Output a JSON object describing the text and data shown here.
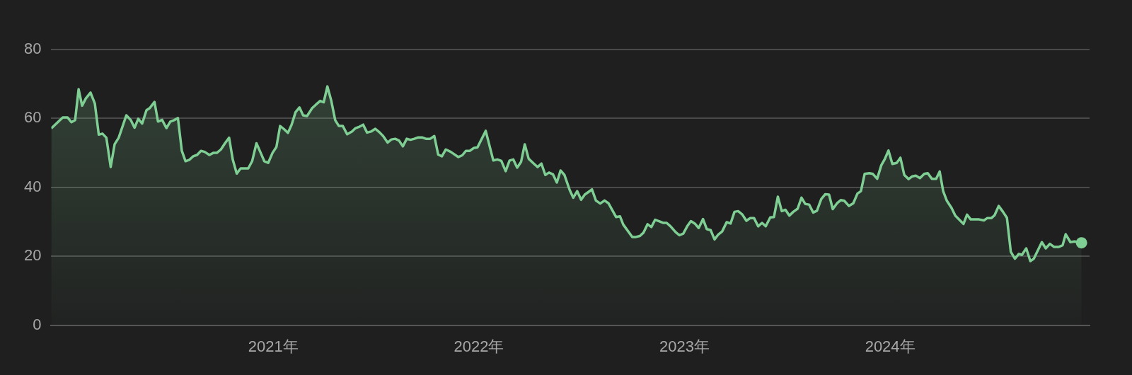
{
  "chart_data": {
    "type": "area",
    "grid": "y",
    "legend": false,
    "xlim": [
      2019.92,
      2024.97
    ],
    "xticks": [
      {
        "value": 2021,
        "label": "2021年"
      },
      {
        "value": 2022,
        "label": "2022年"
      },
      {
        "value": 2023,
        "label": "2023年"
      },
      {
        "value": 2024,
        "label": "2024年"
      }
    ],
    "ylim": [
      0,
      80
    ],
    "yticks": [
      0,
      20,
      40,
      60,
      80
    ],
    "series": [
      {
        "color": "#7fcf94",
        "x": [
          2019.92,
          2019.946,
          2019.976,
          2019.999,
          2020.018,
          2020.036,
          2020.053,
          2020.07,
          2020.088,
          2020.111,
          2020.132,
          2020.151,
          2020.169,
          2020.188,
          2020.209,
          2020.228,
          2020.248,
          2020.285,
          2020.306,
          2020.325,
          2020.343,
          2020.362,
          2020.383,
          2020.399,
          2020.422,
          2020.439,
          2020.459,
          2020.48,
          2020.499,
          2020.517,
          2020.536,
          2020.555,
          2020.573,
          2020.592,
          2020.61,
          2020.629,
          2020.648,
          2020.666,
          2020.689,
          2020.708,
          2020.725,
          2020.745,
          2020.766,
          2020.785,
          2020.803,
          2020.822,
          2020.841,
          2020.859,
          2020.878,
          2020.897,
          2020.918,
          2020.938,
          2020.956,
          2020.975,
          2020.996,
          2021.015,
          2021.033,
          2021.052,
          2021.071,
          2021.089,
          2021.108,
          2021.127,
          2021.145,
          2021.164,
          2021.189,
          2021.207,
          2021.228,
          2021.245,
          2021.263,
          2021.282,
          2021.301,
          2021.319,
          2021.338,
          2021.359,
          2021.382,
          2021.4,
          2021.419,
          2021.437,
          2021.456,
          2021.475,
          2021.496,
          2021.516,
          2021.534,
          2021.556,
          2021.574,
          2021.593,
          2021.611,
          2021.63,
          2021.649,
          2021.667,
          2021.686,
          2021.705,
          2021.723,
          2021.742,
          2021.763,
          2021.783,
          2021.802,
          2021.82,
          2021.839,
          2021.863,
          2021.9,
          2021.919,
          2021.937,
          2021.956,
          2021.974,
          2021.993,
          2022.033,
          2022.07,
          2022.09,
          2022.109,
          2022.13,
          2022.149,
          2022.167,
          2022.186,
          2022.205,
          2022.223,
          2022.242,
          2022.267,
          2022.285,
          2022.304,
          2022.323,
          2022.341,
          2022.36,
          2022.379,
          2022.397,
          2022.416,
          2022.441,
          2022.459,
          2022.478,
          2022.497,
          2022.515,
          2022.55,
          2022.569,
          2022.59,
          2022.611,
          2022.63,
          2022.667,
          2022.686,
          2022.702,
          2022.746,
          2022.764,
          2022.783,
          2022.801,
          2022.82,
          2022.839,
          2022.857,
          2022.876,
          2022.895,
          2022.913,
          2022.932,
          2022.957,
          2022.975,
          2022.994,
          2023.013,
          2023.031,
          2023.05,
          2023.069,
          2023.09,
          2023.108,
          2023.127,
          2023.146,
          2023.164,
          2023.183,
          2023.205,
          2023.224,
          2023.243,
          2023.261,
          2023.28,
          2023.301,
          2023.32,
          2023.338,
          2023.358,
          2023.377,
          2023.395,
          2023.417,
          2023.435,
          2023.454,
          2023.473,
          2023.491,
          2023.51,
          2023.529,
          2023.55,
          2023.569,
          2023.587,
          2023.606,
          2023.626,
          2023.644,
          2023.665,
          2023.684,
          2023.703,
          2023.721,
          2023.742,
          2023.76,
          2023.777,
          2023.8,
          2023.821,
          2023.841,
          2023.858,
          2023.876,
          2023.899,
          2023.916,
          2023.937,
          2023.957,
          2023.974,
          2023.992,
          2024.011,
          2024.032,
          2024.05,
          2024.069,
          2024.09,
          2024.108,
          2024.125,
          2024.145,
          2024.166,
          2024.183,
          2024.203,
          2024.224,
          2024.241,
          2024.258,
          2024.276,
          2024.299,
          2024.317,
          2024.357,
          2024.374,
          2024.392,
          2024.415,
          2024.433,
          2024.456,
          2024.473,
          2024.493,
          2024.508,
          2024.528,
          2024.549,
          2024.568,
          2024.587,
          2024.607,
          2024.626,
          2024.641,
          2024.662,
          2024.682,
          2024.699,
          2024.738,
          2024.757,
          2024.777,
          2024.798,
          2024.819,
          2024.839,
          2024.854,
          2024.877,
          2024.897,
          2024.931
        ],
        "values": [
          57.1,
          58.6,
          60.3,
          60.3,
          58.9,
          59.5,
          68.5,
          63.7,
          65.8,
          67.5,
          64.3,
          55.3,
          55.6,
          54.4,
          45.9,
          52.5,
          54.4,
          60.9,
          59.6,
          57.3,
          59.9,
          58.5,
          62.4,
          63.0,
          64.8,
          59.1,
          59.6,
          57.2,
          59.1,
          59.5,
          60.1,
          50.6,
          47.6,
          48.0,
          49.0,
          49.4,
          50.6,
          50.3,
          49.4,
          50.0,
          50.0,
          51.0,
          52.9,
          54.4,
          48.0,
          44.0,
          45.5,
          45.5,
          45.5,
          47.6,
          52.8,
          50.1,
          47.6,
          47.1,
          50.0,
          51.7,
          57.8,
          56.9,
          55.8,
          58.2,
          61.8,
          63.2,
          60.9,
          60.7,
          63.0,
          64.0,
          65.1,
          64.7,
          69.3,
          65.1,
          59.5,
          57.8,
          57.8,
          55.4,
          56.2,
          57.2,
          57.6,
          58.2,
          55.9,
          56.2,
          57.0,
          56.0,
          54.9,
          53.0,
          53.9,
          54.1,
          53.6,
          51.9,
          54.1,
          53.8,
          54.1,
          54.5,
          54.5,
          54.1,
          54.1,
          54.9,
          49.5,
          49.0,
          51.0,
          50.3,
          48.8,
          49.3,
          50.6,
          50.6,
          51.4,
          51.6,
          56.4,
          47.8,
          48.1,
          47.7,
          44.7,
          47.8,
          48.1,
          45.7,
          47.4,
          52.5,
          48.3,
          46.9,
          45.9,
          46.9,
          43.6,
          44.3,
          43.8,
          41.4,
          44.9,
          43.6,
          39.3,
          37.0,
          38.9,
          36.4,
          37.9,
          39.4,
          36.2,
          35.3,
          36.2,
          35.4,
          31.4,
          31.6,
          29.2,
          25.6,
          25.6,
          25.9,
          26.9,
          29.3,
          28.5,
          30.6,
          30.2,
          29.7,
          29.7,
          28.7,
          27.0,
          26.1,
          26.6,
          28.7,
          30.2,
          29.5,
          28.2,
          30.8,
          27.9,
          27.6,
          24.9,
          26.3,
          27.2,
          29.9,
          29.5,
          32.9,
          33.1,
          32.2,
          30.3,
          31.1,
          31.1,
          28.7,
          29.7,
          28.7,
          31.3,
          31.4,
          37.3,
          33.1,
          33.5,
          31.8,
          32.9,
          33.8,
          37.0,
          35.2,
          35.0,
          32.7,
          33.2,
          36.6,
          38.0,
          37.9,
          33.7,
          35.4,
          36.3,
          36.1,
          34.6,
          35.4,
          38.2,
          38.9,
          43.9,
          44.1,
          43.9,
          42.5,
          46.4,
          48.2,
          50.7,
          46.8,
          47.1,
          48.6,
          43.6,
          42.4,
          43.2,
          43.4,
          42.7,
          43.9,
          44.1,
          42.5,
          42.5,
          44.6,
          38.9,
          36.1,
          34.0,
          31.8,
          29.4,
          32.1,
          30.7,
          30.7,
          30.7,
          30.4,
          31.1,
          31.1,
          31.9,
          34.6,
          32.9,
          31.2,
          21.3,
          19.3,
          20.7,
          20.4,
          22.3,
          18.6,
          19.3,
          24.1,
          22.3,
          23.6,
          22.7,
          22.7,
          23.2,
          26.4,
          24.1,
          24.3,
          23.9
        ]
      }
    ]
  }
}
